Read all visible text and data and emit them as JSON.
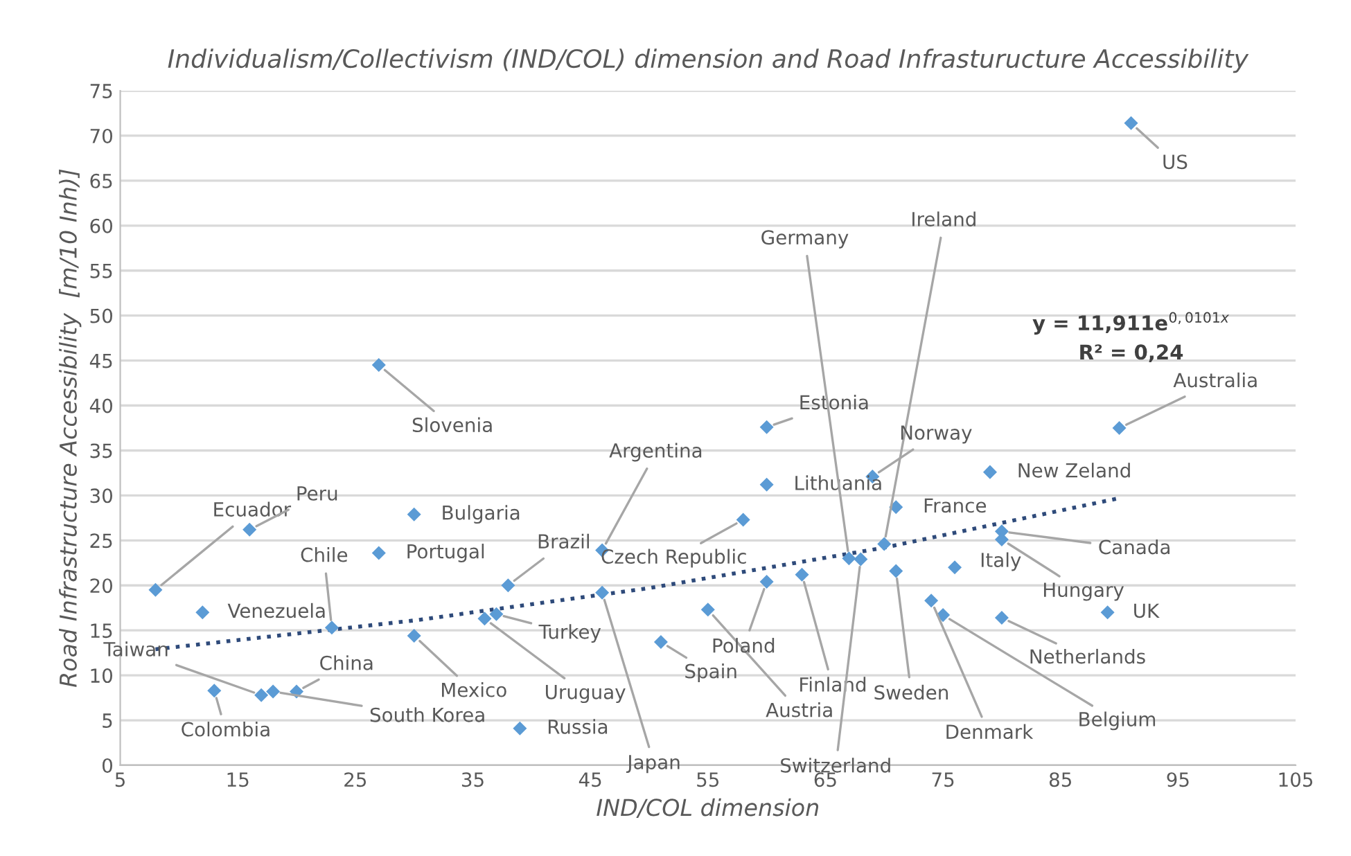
{
  "chart_data": {
    "type": "scatter",
    "title": "Individualism/Collectivism (IND/COL) dimension and Road Infrasturucture Accessibility",
    "xlabel": "IND/COL dimension",
    "ylabel": "Road Infrastructure Accessibility  [m/10 Inh)]",
    "xlim": [
      5,
      105
    ],
    "xticks": [
      5,
      15,
      25,
      35,
      45,
      55,
      65,
      75,
      85,
      95,
      105
    ],
    "ylim": [
      0,
      75
    ],
    "yticks": [
      0,
      5,
      10,
      15,
      20,
      25,
      30,
      35,
      40,
      45,
      50,
      55,
      60,
      65,
      70,
      75
    ],
    "grid": "y",
    "legend": false,
    "series": [
      {
        "color": "#5b9bd5",
        "marker": "diamond",
        "x": [
          8,
          16,
          12,
          23,
          27,
          30,
          27,
          30,
          13,
          17,
          18,
          20,
          38,
          37,
          36,
          39,
          46,
          58,
          46,
          51,
          55,
          60,
          60,
          60,
          63,
          67,
          68,
          70,
          69,
          71,
          71,
          76,
          74,
          75,
          80,
          80,
          80,
          79,
          89,
          90,
          91
        ],
        "values": [
          19.5,
          26.2,
          17.0,
          15.3,
          44.5,
          27.9,
          23.6,
          14.4,
          8.3,
          7.8,
          8.2,
          8.2,
          20.0,
          16.8,
          16.3,
          4.1,
          23.9,
          27.3,
          19.2,
          13.7,
          17.3,
          37.6,
          31.2,
          20.4,
          21.2,
          23.0,
          22.9,
          24.6,
          32.1,
          28.7,
          21.6,
          22.0,
          18.3,
          16.7,
          26.0,
          25.1,
          16.4,
          32.6,
          17.0,
          37.5,
          71.4
        ]
      },
      {
        "type": "line",
        "color": "#2e4a7a",
        "line_style": "dotted",
        "marker": "none",
        "x": [
          8,
          30,
          50,
          70,
          90
        ],
        "values": [
          12.9,
          16.1,
          19.7,
          24.2,
          29.7
        ]
      }
    ],
    "annotations": [
      {
        "text": "Ecuador",
        "x": 8,
        "y": 19.5
      },
      {
        "text": "Peru",
        "x": 16,
        "y": 26.2
      },
      {
        "text": "Venezuela",
        "x": 12,
        "y": 17.0
      },
      {
        "text": "Chile",
        "x": 23,
        "y": 15.3
      },
      {
        "text": "Slovenia",
        "x": 27,
        "y": 44.5
      },
      {
        "text": "Bulgaria",
        "x": 30,
        "y": 27.9
      },
      {
        "text": "Portugal",
        "x": 27,
        "y": 23.6
      },
      {
        "text": "Mexico",
        "x": 30,
        "y": 14.4
      },
      {
        "text": "Colombia",
        "x": 13,
        "y": 8.3
      },
      {
        "text": "Taiwan",
        "x": 17,
        "y": 7.8
      },
      {
        "text": "South Korea",
        "x": 18,
        "y": 8.2
      },
      {
        "text": "China",
        "x": 20,
        "y": 8.2
      },
      {
        "text": "Brazil",
        "x": 38,
        "y": 20.0
      },
      {
        "text": "Turkey",
        "x": 37,
        "y": 16.8
      },
      {
        "text": "Uruguay",
        "x": 36,
        "y": 16.3
      },
      {
        "text": "Russia",
        "x": 39,
        "y": 4.1
      },
      {
        "text": "Argentina",
        "x": 46,
        "y": 23.9
      },
      {
        "text": "Czech Republic",
        "x": 58,
        "y": 27.3
      },
      {
        "text": "Japan",
        "x": 46,
        "y": 19.2
      },
      {
        "text": "Spain",
        "x": 51,
        "y": 13.7
      },
      {
        "text": "Austria",
        "x": 55,
        "y": 17.3
      },
      {
        "text": "Estonia",
        "x": 60,
        "y": 37.6
      },
      {
        "text": "Lithuania",
        "x": 60,
        "y": 31.2
      },
      {
        "text": "Poland",
        "x": 60,
        "y": 20.4
      },
      {
        "text": "Finland",
        "x": 63,
        "y": 21.2
      },
      {
        "text": "Germany",
        "x": 67,
        "y": 23.0
      },
      {
        "text": "Switzerland",
        "x": 68,
        "y": 22.9
      },
      {
        "text": "Ireland",
        "x": 70,
        "y": 24.6
      },
      {
        "text": "Norway",
        "x": 69,
        "y": 32.1
      },
      {
        "text": "France",
        "x": 71,
        "y": 28.7
      },
      {
        "text": "Sweden",
        "x": 71,
        "y": 21.6
      },
      {
        "text": "Italy",
        "x": 76,
        "y": 22.0
      },
      {
        "text": "Denmark",
        "x": 74,
        "y": 18.3
      },
      {
        "text": "Belgium",
        "x": 75,
        "y": 16.7
      },
      {
        "text": "Canada",
        "x": 80,
        "y": 26.0
      },
      {
        "text": "Hungary",
        "x": 80,
        "y": 25.1
      },
      {
        "text": "Netherlands",
        "x": 80,
        "y": 16.4
      },
      {
        "text": "New Zeland",
        "x": 79,
        "y": 32.6
      },
      {
        "text": "UK",
        "x": 89,
        "y": 17.0
      },
      {
        "text": "Australia",
        "x": 90,
        "y": 37.5
      },
      {
        "text": "US",
        "x": 91,
        "y": 71.4
      },
      "y = 11,911e$^{0,0101x}$",
      "R² = 0,24"
    ]
  }
}
